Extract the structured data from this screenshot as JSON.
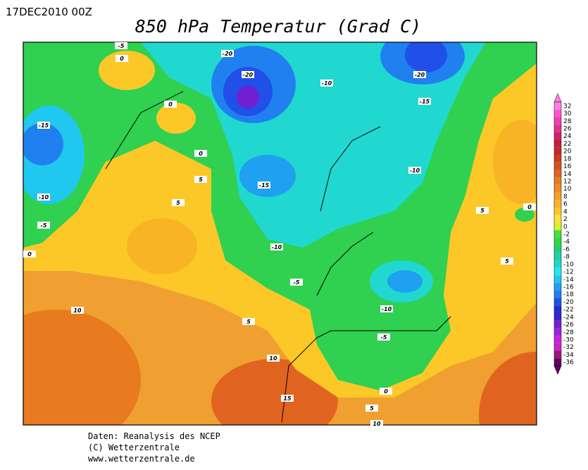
{
  "header": {
    "date": "17DEC2010 00Z",
    "title": "850 hPa Temperatur (Grad C)"
  },
  "map": {
    "contour_labels": [
      -5,
      0,
      -20,
      -20,
      -10,
      -20,
      -15,
      0,
      -15,
      0,
      5,
      -15,
      -10,
      5,
      -10,
      -5,
      0,
      -10,
      5,
      0,
      5,
      -5,
      10,
      -10,
      5,
      -5,
      10,
      15,
      0,
      5,
      10
    ]
  },
  "legend": {
    "levels": [
      32,
      30,
      28,
      26,
      24,
      22,
      20,
      18,
      16,
      14,
      12,
      10,
      8,
      6,
      4,
      2,
      0,
      -2,
      -4,
      -6,
      -8,
      -10,
      -12,
      -14,
      -16,
      -18,
      -20,
      -22,
      -24,
      -26,
      -28,
      -30,
      -32,
      -34,
      -36
    ],
    "colors": [
      "#ff80e0",
      "#ff55cc",
      "#f040b0",
      "#e03090",
      "#d02070",
      "#c81e3c",
      "#c82828",
      "#d03a1e",
      "#d8501e",
      "#e06420",
      "#e87a20",
      "#f08c20",
      "#f5a020",
      "#f8b424",
      "#fcc828",
      "#ffe040",
      "#d8f028",
      "#40e040",
      "#30d840",
      "#20d070",
      "#20d0a0",
      "#20d8d0",
      "#20e8f0",
      "#20c8f0",
      "#20a0f0",
      "#2080f0",
      "#2050e8",
      "#2030d0",
      "#4020c8",
      "#7020d0",
      "#a020d8",
      "#c820e0",
      "#d020c8",
      "#a01080",
      "#600060"
    ]
  },
  "footer": {
    "lines": [
      "Daten: Reanalysis des NCEP",
      "(C) Wetterzentrale",
      "www.wetterzentrale.de"
    ]
  }
}
